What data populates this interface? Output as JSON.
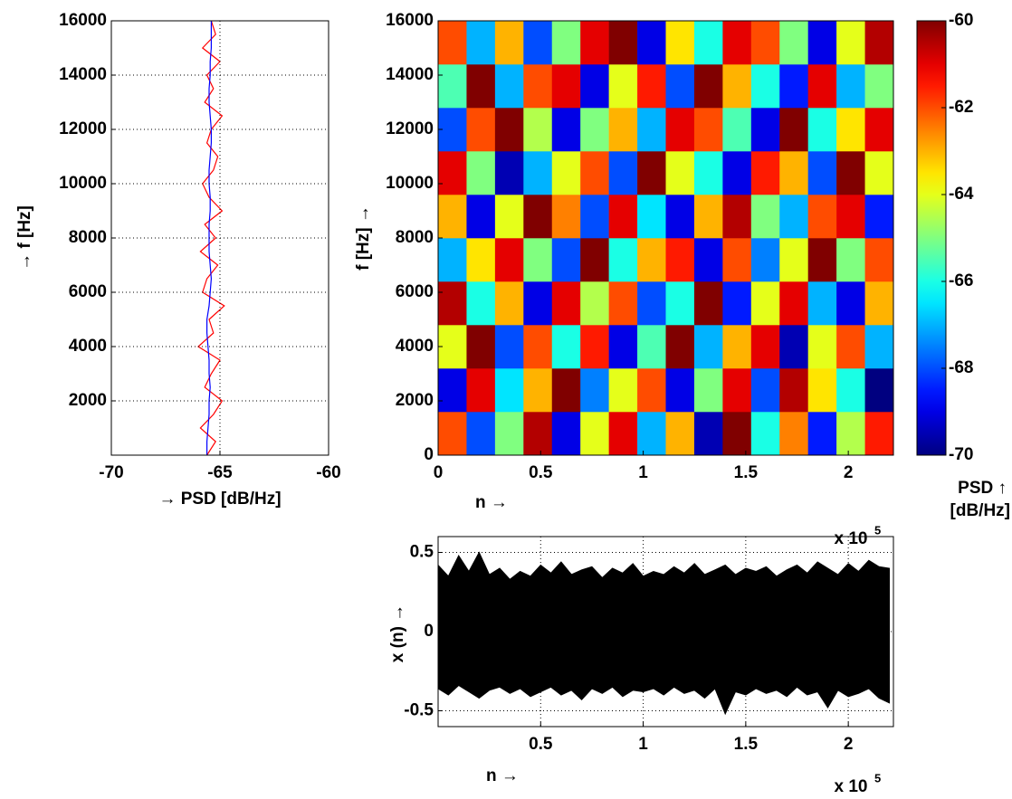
{
  "chart_data": [
    {
      "type": "line",
      "orientation": "horizontal",
      "y": [
        0,
        500,
        1000,
        1500,
        2000,
        2500,
        3000,
        3500,
        4000,
        4500,
        5000,
        5500,
        6000,
        6500,
        7000,
        7500,
        8000,
        8500,
        9000,
        9500,
        10000,
        10500,
        11000,
        11500,
        12000,
        12500,
        13000,
        13500,
        14000,
        14500,
        15000,
        15500,
        16000
      ],
      "series": [
        {
          "color": "#ff0000",
          "values": [
            -65.6,
            -65.2,
            -65.9,
            -65.3,
            -64.9,
            -65.7,
            -65.4,
            -65,
            -66,
            -65.3,
            -65.5,
            -64.8,
            -65.8,
            -65.6,
            -65.1,
            -65.9,
            -65.2,
            -65.7,
            -64.9,
            -65.5,
            -65.8,
            -65.3,
            -65.1,
            -65.6,
            -65.4,
            -64.9,
            -65.7,
            -65.3,
            -65.6,
            -65,
            -65.8,
            -65.2,
            -65.4
          ]
        },
        {
          "color": "#0000ff",
          "values": [
            -65.6,
            -65.6,
            -65.55,
            -65.5,
            -65.5,
            -65.45,
            -65.5,
            -65.5,
            -65.55,
            -65.6,
            -65.6,
            -65.5,
            -65.45,
            -65.4,
            -65.45,
            -65.5,
            -65.5,
            -65.5,
            -65.45,
            -65.45,
            -65.5,
            -65.5,
            -65.45,
            -65.4,
            -65.4,
            -65.45,
            -65.5,
            -65.5,
            -65.45,
            -65.45,
            -65.4,
            -65.4,
            -65.4
          ]
        }
      ],
      "xlim": [
        -70,
        -60
      ],
      "xticks": [
        -70,
        -65,
        -60
      ],
      "ylim": [
        0,
        16000
      ],
      "yticks": [
        2000,
        4000,
        6000,
        8000,
        10000,
        12000,
        14000,
        16000
      ],
      "grid": true,
      "xlabel": "→ PSD [dB/Hz]",
      "ylabel": "→ f [Hz]"
    },
    {
      "type": "heatmap",
      "colormap": "jet",
      "z": [
        [
          -62,
          -68,
          -65,
          -60.5,
          -69,
          -64,
          -61,
          -67,
          -63,
          -69.5,
          -60,
          -66,
          -62.5,
          -68.5,
          -64.5,
          -61.5
        ],
        [
          -69,
          -61,
          -66.5,
          -63,
          -60,
          -67.5,
          -64,
          -62,
          -69,
          -65,
          -61,
          -68,
          -60.5,
          -63.5,
          -66,
          -70
        ],
        [
          -64,
          -60,
          -68,
          -62,
          -66,
          -61.5,
          -69,
          -65.5,
          -60,
          -67,
          -63,
          -61,
          -69.5,
          -64,
          -62,
          -67
        ],
        [
          -60.5,
          -66,
          -63,
          -69,
          -61,
          -64.5,
          -62,
          -68,
          -66,
          -60,
          -68.5,
          -64,
          -61,
          -67,
          -69,
          -63
        ],
        [
          -67,
          -63.5,
          -61,
          -65,
          -68,
          -60,
          -66,
          -63,
          -61.5,
          -69,
          -62,
          -67.5,
          -64,
          -60,
          -65,
          -62
        ],
        [
          -63,
          -69,
          -64,
          -60,
          -62.5,
          -68,
          -61,
          -66.5,
          -69,
          -63,
          -60.5,
          -65,
          -67,
          -62,
          -61,
          -68.5
        ],
        [
          -61,
          -65,
          -69.5,
          -67,
          -64,
          -62,
          -68,
          -60,
          -64,
          -66,
          -69,
          -61.5,
          -63,
          -68,
          -60,
          -64
        ],
        [
          -68,
          -62,
          -60,
          -64.5,
          -69,
          -65,
          -63,
          -67,
          -61,
          -62,
          -65.5,
          -69,
          -60,
          -66,
          -63.5,
          -61
        ],
        [
          -65.5,
          -60,
          -67,
          -62,
          -61,
          -69,
          -64,
          -61.5,
          -68,
          -60,
          -63,
          -66,
          -68.5,
          -61,
          -67,
          -65
        ],
        [
          -62,
          -67,
          -63,
          -68,
          -65,
          -61,
          -60,
          -69,
          -63.5,
          -66,
          -61,
          -62,
          -65,
          -69,
          -64,
          -60.5
        ]
      ],
      "xlim": [
        0,
        222000
      ],
      "xticks": [
        0,
        {
          "value": 50000,
          "label": "0.5"
        },
        {
          "value": 100000,
          "label": "1"
        },
        {
          "value": 150000,
          "label": "1.5"
        },
        {
          "value": 200000,
          "label": "2"
        }
      ],
      "ylim": [
        0,
        16000
      ],
      "yticks": [
        0,
        2000,
        4000,
        6000,
        8000,
        10000,
        12000,
        14000,
        16000
      ],
      "clim": [
        -70,
        -60
      ],
      "cticks": [
        -70,
        -68,
        -66,
        -64,
        -62,
        -60
      ],
      "xlabel": "n →",
      "ylabel": "f [Hz] →",
      "x_multiplier": "x 10",
      "x_multiplier_exponent": "5",
      "colorbar_label": [
        "PSD ↑",
        "[dB/Hz]"
      ]
    },
    {
      "type": "waveform",
      "color": "#000000",
      "x": [
        0,
        5000,
        10000,
        15000,
        20000,
        25000,
        30000,
        35000,
        40000,
        45000,
        50000,
        55000,
        60000,
        65000,
        70000,
        75000,
        80000,
        85000,
        90000,
        95000,
        100000,
        105000,
        110000,
        115000,
        120000,
        125000,
        130000,
        135000,
        140000,
        145000,
        150000,
        155000,
        160000,
        165000,
        170000,
        175000,
        180000,
        185000,
        190000,
        195000,
        200000,
        205000,
        210000,
        215000,
        220000
      ],
      "upper": [
        0.42,
        0.35,
        0.48,
        0.38,
        0.5,
        0.36,
        0.4,
        0.33,
        0.38,
        0.35,
        0.42,
        0.37,
        0.44,
        0.36,
        0.39,
        0.41,
        0.34,
        0.4,
        0.37,
        0.43,
        0.35,
        0.38,
        0.36,
        0.41,
        0.37,
        0.43,
        0.36,
        0.39,
        0.42,
        0.36,
        0.4,
        0.38,
        0.41,
        0.35,
        0.39,
        0.42,
        0.37,
        0.44,
        0.4,
        0.36,
        0.43,
        0.38,
        0.45,
        0.41,
        0.4
      ],
      "lower": [
        -0.36,
        -0.4,
        -0.34,
        -0.38,
        -0.42,
        -0.37,
        -0.35,
        -0.39,
        -0.36,
        -0.41,
        -0.38,
        -0.35,
        -0.4,
        -0.37,
        -0.43,
        -0.36,
        -0.39,
        -0.35,
        -0.41,
        -0.37,
        -0.38,
        -0.36,
        -0.4,
        -0.35,
        -0.39,
        -0.37,
        -0.42,
        -0.36,
        -0.52,
        -0.38,
        -0.4,
        -0.36,
        -0.39,
        -0.37,
        -0.41,
        -0.35,
        -0.4,
        -0.38,
        -0.48,
        -0.37,
        -0.41,
        -0.39,
        -0.36,
        -0.42,
        -0.45
      ],
      "xlim": [
        0,
        222000
      ],
      "xticks": [
        {
          "value": 50000,
          "label": "0.5"
        },
        {
          "value": 100000,
          "label": "1"
        },
        {
          "value": 150000,
          "label": "1.5"
        },
        {
          "value": 200000,
          "label": "2"
        }
      ],
      "ylim": [
        -0.6,
        0.6
      ],
      "yticks": [
        -0.5,
        0,
        0.5
      ],
      "grid": true,
      "xlabel": "n  →",
      "ylabel": "x (n)   →",
      "x_multiplier": "x 10",
      "x_multiplier_exponent": "5"
    }
  ]
}
